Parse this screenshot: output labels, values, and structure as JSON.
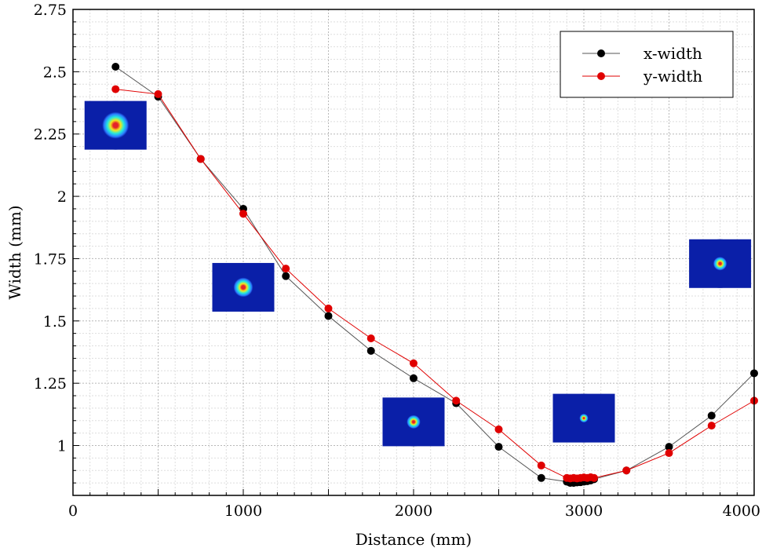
{
  "chart_data": {
    "type": "line",
    "title": "",
    "xlabel": "Distance (mm)",
    "ylabel": "Width (mm)",
    "xlim": [
      0,
      4000
    ],
    "ylim": [
      0.8,
      2.75
    ],
    "x_ticks": [
      0,
      1000,
      2000,
      3000,
      4000
    ],
    "x_tick_labels": [
      "0",
      "1000",
      "2000",
      "3000",
      "4000"
    ],
    "y_ticks": [
      1,
      1.25,
      1.5,
      1.75,
      2,
      2.25,
      2.5,
      2.75
    ],
    "y_tick_labels": [
      "1",
      "1.25",
      "1.5",
      "1.75",
      "2",
      "2.25",
      "2.5",
      "2.75"
    ],
    "grid": true,
    "legend_position": "top-right",
    "series": [
      {
        "name": "x-width",
        "color": "#000000",
        "line_color": "#555555",
        "x": [
          250,
          500,
          750,
          1000,
          1250,
          1500,
          1750,
          2000,
          2250,
          2500,
          2750,
          2900,
          2920,
          2940,
          2960,
          2980,
          3000,
          3020,
          3040,
          3060,
          3250,
          3500,
          3750,
          4000
        ],
        "y": [
          2.52,
          2.4,
          2.15,
          1.95,
          1.68,
          1.52,
          1.38,
          1.27,
          1.17,
          0.995,
          0.87,
          0.855,
          0.85,
          0.85,
          0.852,
          0.853,
          0.855,
          0.857,
          0.86,
          0.865,
          0.9,
          0.995,
          1.12,
          1.29
        ]
      },
      {
        "name": "y-width",
        "color": "#e00000",
        "line_color": "#e00000",
        "x": [
          250,
          500,
          750,
          1000,
          1250,
          1500,
          1750,
          2000,
          2250,
          2500,
          2750,
          2900,
          2920,
          2940,
          2960,
          2980,
          3000,
          3020,
          3040,
          3060,
          3250,
          3500,
          3750,
          4000
        ],
        "y": [
          2.43,
          2.41,
          2.15,
          1.93,
          1.71,
          1.55,
          1.43,
          1.33,
          1.18,
          1.065,
          0.92,
          0.87,
          0.868,
          0.87,
          0.868,
          0.87,
          0.872,
          0.87,
          0.873,
          0.87,
          0.9,
          0.97,
          1.08,
          1.18
        ]
      }
    ],
    "insets": [
      {
        "name": "beam-profile-250mm",
        "x": 250,
        "y": 2.285,
        "spot_size": 0.55
      },
      {
        "name": "beam-profile-1000mm",
        "x": 1000,
        "y": 1.635,
        "spot_size": 0.4
      },
      {
        "name": "beam-profile-2000mm",
        "x": 2000,
        "y": 1.095,
        "spot_size": 0.28
      },
      {
        "name": "beam-profile-3000mm",
        "x": 3000,
        "y": 1.11,
        "spot_size": 0.18
      },
      {
        "name": "beam-profile-3800mm",
        "x": 3800,
        "y": 1.73,
        "spot_size": 0.28
      }
    ],
    "inset_colors": {
      "background": "#0a1fa8",
      "ring1": "#2a7cff",
      "ring2": "#22e8e0",
      "ring3": "#f3e81c",
      "core": "#e5222a"
    }
  }
}
